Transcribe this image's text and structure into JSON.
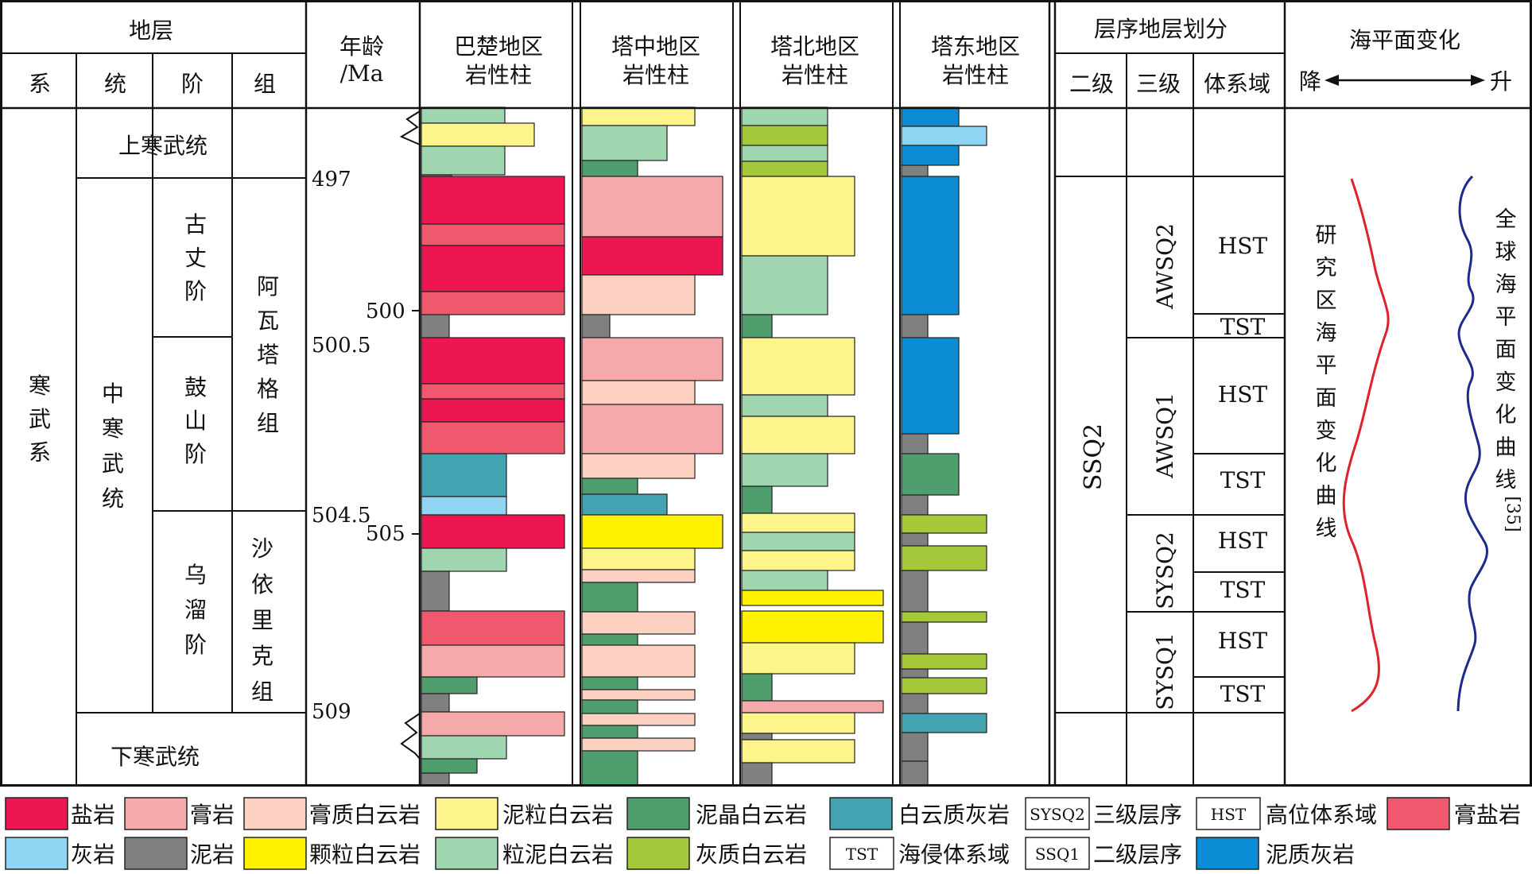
{
  "colors": {
    "salt": "#EE1651",
    "gypsum": "#F5A9AA",
    "gypsum_dolomite": "#FCD1C1",
    "muddy_grain_dolomite": "#FDF58C",
    "micritic_dolomite": "#4F9F6E",
    "calcareous_dolomite_lime": "#43A3B1",
    "limestone": "#8FD4F3",
    "mudstone": "#808080",
    "grain_dolomite": "#FFF200",
    "grainy_mud_dolomite": "#9FD6AF",
    "lime_dolomite": "#A5C93A",
    "gypsum_salt": "#F0586E",
    "muddy_limestone": "#0B8CD5",
    "study_curve": "#DD2229",
    "global_curve": "#1D2A8D"
  },
  "header": {
    "strata": "地层",
    "system": "系",
    "series": "统",
    "stage": "阶",
    "formation": "组",
    "age_line1": "年龄",
    "age_line2": "/Ma",
    "bachu_line1": "巴楚地区",
    "bachu_line2": "岩性柱",
    "tazhong_line1": "塔中地区",
    "tazhong_line2": "岩性柱",
    "tabei_line1": "塔北地区",
    "tabei_line2": "岩性柱",
    "tadong_line1": "塔东地区",
    "tadong_line2": "岩性柱",
    "sequence": "层序地层划分",
    "second_order": "二级",
    "third_order": "三级",
    "systems_tract": "体系域",
    "sea_level": "海平面变化",
    "fall": "降",
    "rise": "升"
  },
  "strata": {
    "upper_cambrian": "上寒武统",
    "cambrian_system": "寒武系",
    "middle_cambrian": "中寒武统",
    "guzhang": "古丈阶",
    "drum": "鼓山阶",
    "wuliu": "乌溜阶",
    "awatage": "阿瓦塔格组",
    "shayili": "沙依里克组",
    "lower_cambrian": "下寒武统"
  },
  "ages": {
    "a497": "497",
    "a500": "500",
    "a500_5": "500.5",
    "a504_5": "504.5",
    "a505": "505",
    "a509": "509"
  },
  "sequence": {
    "ssq2": "SSQ2",
    "awsq2": "AWSQ2",
    "awsq1": "AWSQ1",
    "sysq2": "SYSQ2",
    "sysq1": "SYSQ1",
    "hst": "HST",
    "tst": "TST"
  },
  "curves": {
    "study_label": "研究区海平面变化曲线",
    "global_label": "全球海平面变化曲线",
    "global_ref": "[35]"
  },
  "legend": {
    "salt": "盐岩",
    "gypsum": "膏岩",
    "gypsum_dolomite": "膏质白云岩",
    "muddy_grain_dolomite": "泥粒白云岩",
    "micritic_dolomite": "泥晶白云岩",
    "calcareous_dolomite_lime": "白云质灰岩",
    "sysq2_box": "SYSQ2",
    "third_order_seq": "三级层序",
    "hst_box": "HST",
    "hst_name": "高位体系域",
    "gypsum_salt": "膏盐岩",
    "limestone": "灰岩",
    "mudstone": "泥岩",
    "grain_dolomite": "颗粒白云岩",
    "grainy_mud_dolomite": "粒泥白云岩",
    "lime_dolomite": "灰质白云岩",
    "tst_box": "TST",
    "tst_name": "海侵体系域",
    "ssq1_box": "SSQ1",
    "second_order_seq": "二级层序",
    "muddy_limestone": "泥质灰岩"
  }
}
